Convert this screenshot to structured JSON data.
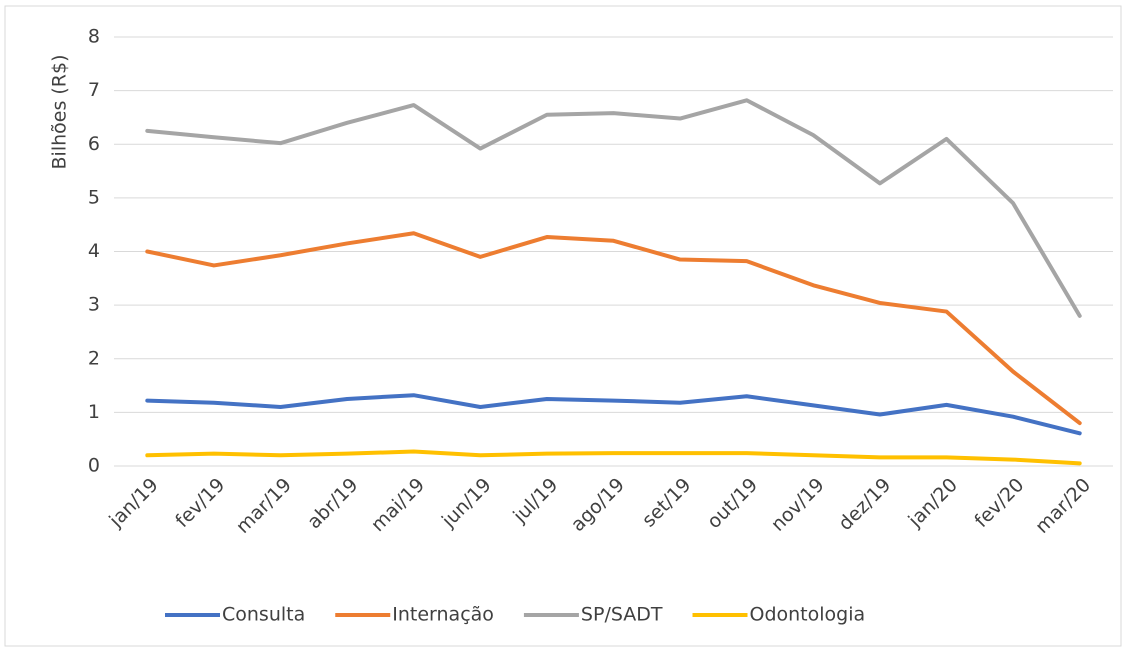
{
  "chart_data": {
    "type": "line",
    "y_label": "Bilhões (R$)",
    "categories": [
      "jan/19",
      "fev/19",
      "mar/19",
      "abr/19",
      "mai/19",
      "jun/19",
      "jul/19",
      "ago/19",
      "set/19",
      "out/19",
      "nov/19",
      "dez/19",
      "jan/20",
      "fev/20",
      "mar/20"
    ],
    "series": [
      {
        "name": "Consulta",
        "color": "#4472c4",
        "values": [
          1.22,
          1.18,
          1.1,
          1.25,
          1.32,
          1.1,
          1.25,
          1.22,
          1.18,
          1.3,
          1.13,
          0.96,
          1.14,
          0.92,
          0.61
        ]
      },
      {
        "name": "Internação",
        "color": "#ed7d31",
        "values": [
          4.0,
          3.74,
          3.93,
          4.15,
          4.34,
          3.9,
          4.27,
          4.2,
          3.85,
          3.82,
          3.37,
          3.04,
          2.88,
          1.76,
          0.8
        ]
      },
      {
        "name": "SP/SADT",
        "color": "#a5a5a5",
        "values": [
          6.25,
          6.13,
          6.02,
          6.4,
          6.73,
          5.92,
          6.55,
          6.58,
          6.48,
          6.82,
          6.17,
          5.27,
          6.1,
          4.9,
          2.8
        ]
      },
      {
        "name": "Odontologia",
        "color": "#ffc000",
        "values": [
          0.2,
          0.23,
          0.2,
          0.23,
          0.27,
          0.2,
          0.23,
          0.24,
          0.24,
          0.24,
          0.2,
          0.16,
          0.16,
          0.12,
          0.05
        ]
      }
    ],
    "ylim": [
      0,
      8
    ],
    "yticks": [
      0,
      1,
      2,
      3,
      4,
      5,
      6,
      7,
      8
    ],
    "grid": true,
    "legend": "bottom"
  }
}
